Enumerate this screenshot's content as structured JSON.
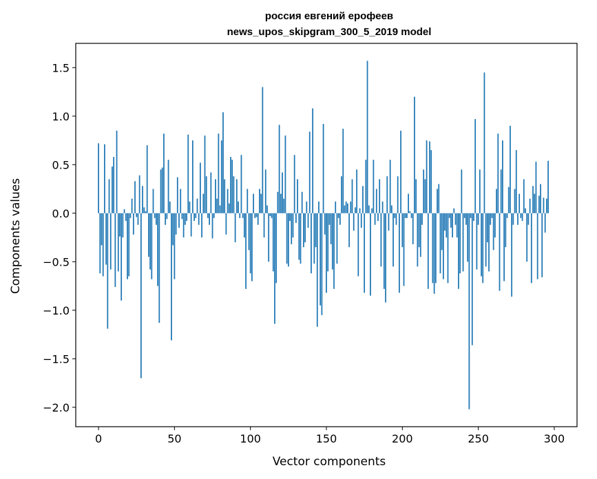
{
  "chart_data": {
    "type": "bar",
    "title": "россия евгений ерофеев",
    "subtitle": "news_upos_skipgram_300_5_2019 model",
    "xlabel": "Vector components",
    "ylabel": "Components values",
    "xlim": [
      -15,
      315
    ],
    "ylim": [
      -2.2,
      1.75
    ],
    "xticks": [
      0,
      50,
      100,
      150,
      200,
      250,
      300
    ],
    "xtick_labels": [
      "0",
      "50",
      "100",
      "150",
      "200",
      "250",
      "300"
    ],
    "yticks": [
      1.5,
      1.0,
      0.5,
      0.0,
      -0.5,
      -1.0,
      -1.5,
      -2.0
    ],
    "ytick_labels": [
      "1.5",
      "1.0",
      "0.5",
      "0.0",
      "−0.5",
      "−1.0",
      "−1.5",
      "−2.0"
    ],
    "grid": false,
    "bar_color": "#1f77b4",
    "values": [
      0.72,
      -0.62,
      -0.33,
      -0.65,
      0.71,
      -0.53,
      -1.19,
      0.35,
      -0.58,
      0.48,
      0.58,
      -0.76,
      0.85,
      -0.6,
      -0.24,
      -0.9,
      -0.25,
      0.04,
      -0.08,
      -0.68,
      -0.65,
      -0.05,
      0.15,
      -0.22,
      0.33,
      -0.04,
      -0.12,
      0.39,
      -1.7,
      0.28,
      0.06,
      0.02,
      0.7,
      -0.45,
      -0.58,
      -0.68,
      0.25,
      -0.05,
      -0.12,
      -0.75,
      -1.13,
      0.45,
      0.47,
      0.82,
      -0.12,
      -0.06,
      0.55,
      0.12,
      -1.31,
      -0.33,
      -0.68,
      -0.22,
      0.37,
      -0.15,
      0.25,
      -0.06,
      -0.25,
      -0.12,
      -0.08,
      0.81,
      0.12,
      -0.24,
      0.75,
      -0.08,
      -0.05,
      0.15,
      -0.12,
      0.52,
      -0.25,
      0.2,
      0.8,
      0.38,
      -0.05,
      -0.12,
      0.42,
      -0.26,
      -0.05,
      0.35,
      0.15,
      0.82,
      0.08,
      0.75,
      1.04,
      0.35,
      -0.22,
      0.25,
      0.1,
      0.58,
      0.55,
      0.38,
      -0.3,
      0.35,
      0.12,
      -0.05,
      0.6,
      -0.05,
      -0.25,
      -0.78,
      0.25,
      -0.38,
      -0.62,
      -0.7,
      0.2,
      -0.05,
      -0.04,
      -0.12,
      0.25,
      0.2,
      1.3,
      -0.25,
      0.45,
      0.08,
      -0.5,
      -0.03,
      -0.05,
      -0.6,
      -1.14,
      -0.72,
      0.22,
      0.91,
      0.2,
      0.42,
      0.15,
      0.8,
      -0.52,
      -0.55,
      -0.08,
      -0.32,
      -0.25,
      0.6,
      -0.1,
      0.35,
      -0.48,
      -0.52,
      0.22,
      -0.35,
      -0.3,
      0.12,
      -0.15,
      0.84,
      -0.62,
      1.08,
      -0.52,
      -0.35,
      -1.17,
      0.12,
      -0.95,
      -1.05,
      0.92,
      -0.22,
      -0.82,
      -0.6,
      -0.12,
      -0.32,
      -0.58,
      -0.78,
      0.12,
      -0.52,
      -0.05,
      -0.12,
      0.38,
      0.87,
      0.08,
      0.12,
      0.1,
      -0.35,
      0.12,
      0.35,
      -0.18,
      0.06,
      0.45,
      -0.65,
      0.05,
      -0.15,
      0.28,
      -0.82,
      0.55,
      1.57,
      0.08,
      -0.85,
      0.05,
      0.55,
      -0.12,
      0.25,
      -0.08,
      0.35,
      -0.55,
      0.12,
      -0.78,
      -0.92,
      0.38,
      -0.18,
      0.55,
      0.08,
      -0.55,
      -0.05,
      -0.12,
      0.38,
      -0.82,
      0.85,
      -0.35,
      -0.75,
      -0.05,
      -0.05,
      0.2,
      0.02,
      -0.05,
      -0.32,
      1.2,
      0.35,
      -0.55,
      -0.35,
      -0.45,
      -0.12,
      0.45,
      0.35,
      0.75,
      -0.78,
      0.74,
      0.65,
      -0.72,
      -0.83,
      -0.72,
      0.25,
      0.3,
      -0.62,
      -0.38,
      -0.68,
      -0.18,
      -0.25,
      -0.72,
      -0.05,
      -0.15,
      -0.25,
      0.05,
      -0.12,
      -0.25,
      -0.78,
      -0.62,
      0.45,
      -0.6,
      -0.05,
      -0.12,
      -0.5,
      -2.02,
      -0.05,
      -1.36,
      -0.08,
      0.97,
      -0.58,
      -0.12,
      0.45,
      -0.65,
      -0.72,
      1.45,
      -0.55,
      -0.3,
      -0.6,
      -0.12,
      -0.05,
      -0.38,
      -0.25,
      0.25,
      0.82,
      -0.8,
      0.45,
      0.75,
      -0.7,
      -0.35,
      -0.05,
      0.27,
      0.9,
      -0.86,
      -0.12,
      0.25,
      0.65,
      -0.12,
      0.2,
      -0.05,
      -0.08,
      0.35,
      0.05,
      -0.5,
      -0.12,
      0.15,
      -0.72,
      0.28,
      0.2,
      0.53,
      -0.68,
      0.18,
      0.3,
      -0.66,
      0.16,
      -0.2,
      0.15,
      0.54
    ]
  }
}
